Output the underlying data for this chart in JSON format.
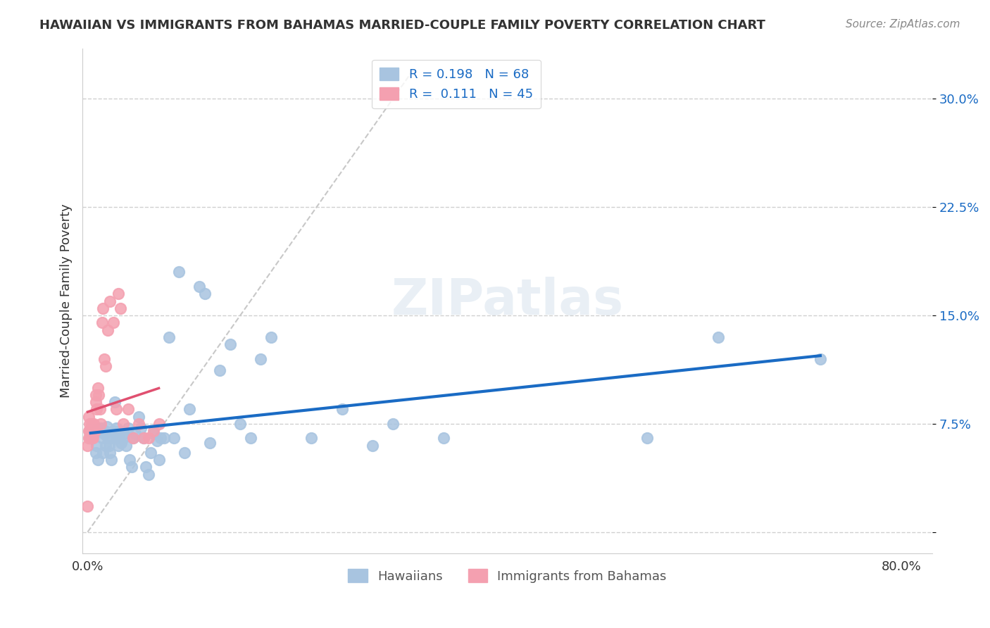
{
  "title": "HAWAIIAN VS IMMIGRANTS FROM BAHAMAS MARRIED-COUPLE FAMILY POVERTY CORRELATION CHART",
  "source": "Source: ZipAtlas.com",
  "xlabel_text": "",
  "ylabel_text": "Married-Couple Family Poverty",
  "x_ticks": [
    0.0,
    0.1,
    0.2,
    0.3,
    0.4,
    0.5,
    0.6,
    0.7,
    0.8
  ],
  "x_tick_labels": [
    "0.0%",
    "",
    "",
    "",
    "",
    "",
    "",
    "",
    "80.0%"
  ],
  "y_ticks": [
    0.0,
    0.075,
    0.15,
    0.225,
    0.3
  ],
  "y_tick_labels": [
    "",
    "7.5%",
    "15.0%",
    "22.5%",
    "30.0%"
  ],
  "xlim": [
    -0.005,
    0.83
  ],
  "ylim": [
    -0.015,
    0.335
  ],
  "hawaiians_R": 0.198,
  "hawaiians_N": 68,
  "bahamas_R": 0.111,
  "bahamas_N": 45,
  "hawaiians_color": "#a8c4e0",
  "bahamas_color": "#f4a0b0",
  "trend_blue": "#1a6bc4",
  "trend_pink": "#e05070",
  "diag_color": "#c8c8c8",
  "legend_label_hawaiians": "Hawaiians",
  "legend_label_bahamas": "Immigrants from Bahamas",
  "watermark": "ZIPatlas",
  "hawaiians_x": [
    0.003,
    0.005,
    0.007,
    0.008,
    0.009,
    0.01,
    0.012,
    0.013,
    0.014,
    0.015,
    0.016,
    0.017,
    0.018,
    0.019,
    0.02,
    0.021,
    0.022,
    0.023,
    0.024,
    0.025,
    0.027,
    0.028,
    0.029,
    0.03,
    0.031,
    0.032,
    0.033,
    0.035,
    0.036,
    0.038,
    0.04,
    0.041,
    0.043,
    0.045,
    0.047,
    0.05,
    0.052,
    0.055,
    0.057,
    0.06,
    0.062,
    0.065,
    0.068,
    0.07,
    0.072,
    0.075,
    0.08,
    0.085,
    0.09,
    0.095,
    0.1,
    0.11,
    0.115,
    0.12,
    0.13,
    0.14,
    0.15,
    0.16,
    0.17,
    0.18,
    0.22,
    0.25,
    0.28,
    0.3,
    0.35,
    0.55,
    0.62,
    0.72
  ],
  "hawaiians_y": [
    0.065,
    0.068,
    0.07,
    0.055,
    0.06,
    0.05,
    0.07,
    0.072,
    0.065,
    0.055,
    0.068,
    0.07,
    0.06,
    0.073,
    0.065,
    0.06,
    0.055,
    0.05,
    0.065,
    0.07,
    0.09,
    0.072,
    0.065,
    0.06,
    0.065,
    0.07,
    0.062,
    0.065,
    0.068,
    0.06,
    0.072,
    0.05,
    0.045,
    0.065,
    0.068,
    0.08,
    0.072,
    0.065,
    0.045,
    0.04,
    0.055,
    0.068,
    0.063,
    0.05,
    0.065,
    0.065,
    0.135,
    0.065,
    0.18,
    0.055,
    0.085,
    0.17,
    0.165,
    0.062,
    0.112,
    0.13,
    0.075,
    0.065,
    0.12,
    0.135,
    0.065,
    0.085,
    0.06,
    0.075,
    0.065,
    0.065,
    0.135,
    0.12
  ],
  "bahamas_x": [
    0.0,
    0.0,
    0.001,
    0.001,
    0.001,
    0.002,
    0.002,
    0.002,
    0.003,
    0.003,
    0.003,
    0.003,
    0.004,
    0.004,
    0.004,
    0.005,
    0.005,
    0.006,
    0.006,
    0.007,
    0.008,
    0.008,
    0.009,
    0.01,
    0.011,
    0.012,
    0.013,
    0.014,
    0.015,
    0.016,
    0.018,
    0.02,
    0.022,
    0.025,
    0.028,
    0.03,
    0.032,
    0.035,
    0.04,
    0.045,
    0.05,
    0.055,
    0.06,
    0.065,
    0.07
  ],
  "bahamas_y": [
    0.018,
    0.06,
    0.065,
    0.07,
    0.08,
    0.065,
    0.07,
    0.075,
    0.065,
    0.07,
    0.072,
    0.068,
    0.065,
    0.07,
    0.075,
    0.065,
    0.07,
    0.072,
    0.075,
    0.07,
    0.09,
    0.095,
    0.085,
    0.1,
    0.095,
    0.085,
    0.075,
    0.145,
    0.155,
    0.12,
    0.115,
    0.14,
    0.16,
    0.145,
    0.085,
    0.165,
    0.155,
    0.075,
    0.085,
    0.065,
    0.075,
    0.065,
    0.065,
    0.07,
    0.075
  ]
}
